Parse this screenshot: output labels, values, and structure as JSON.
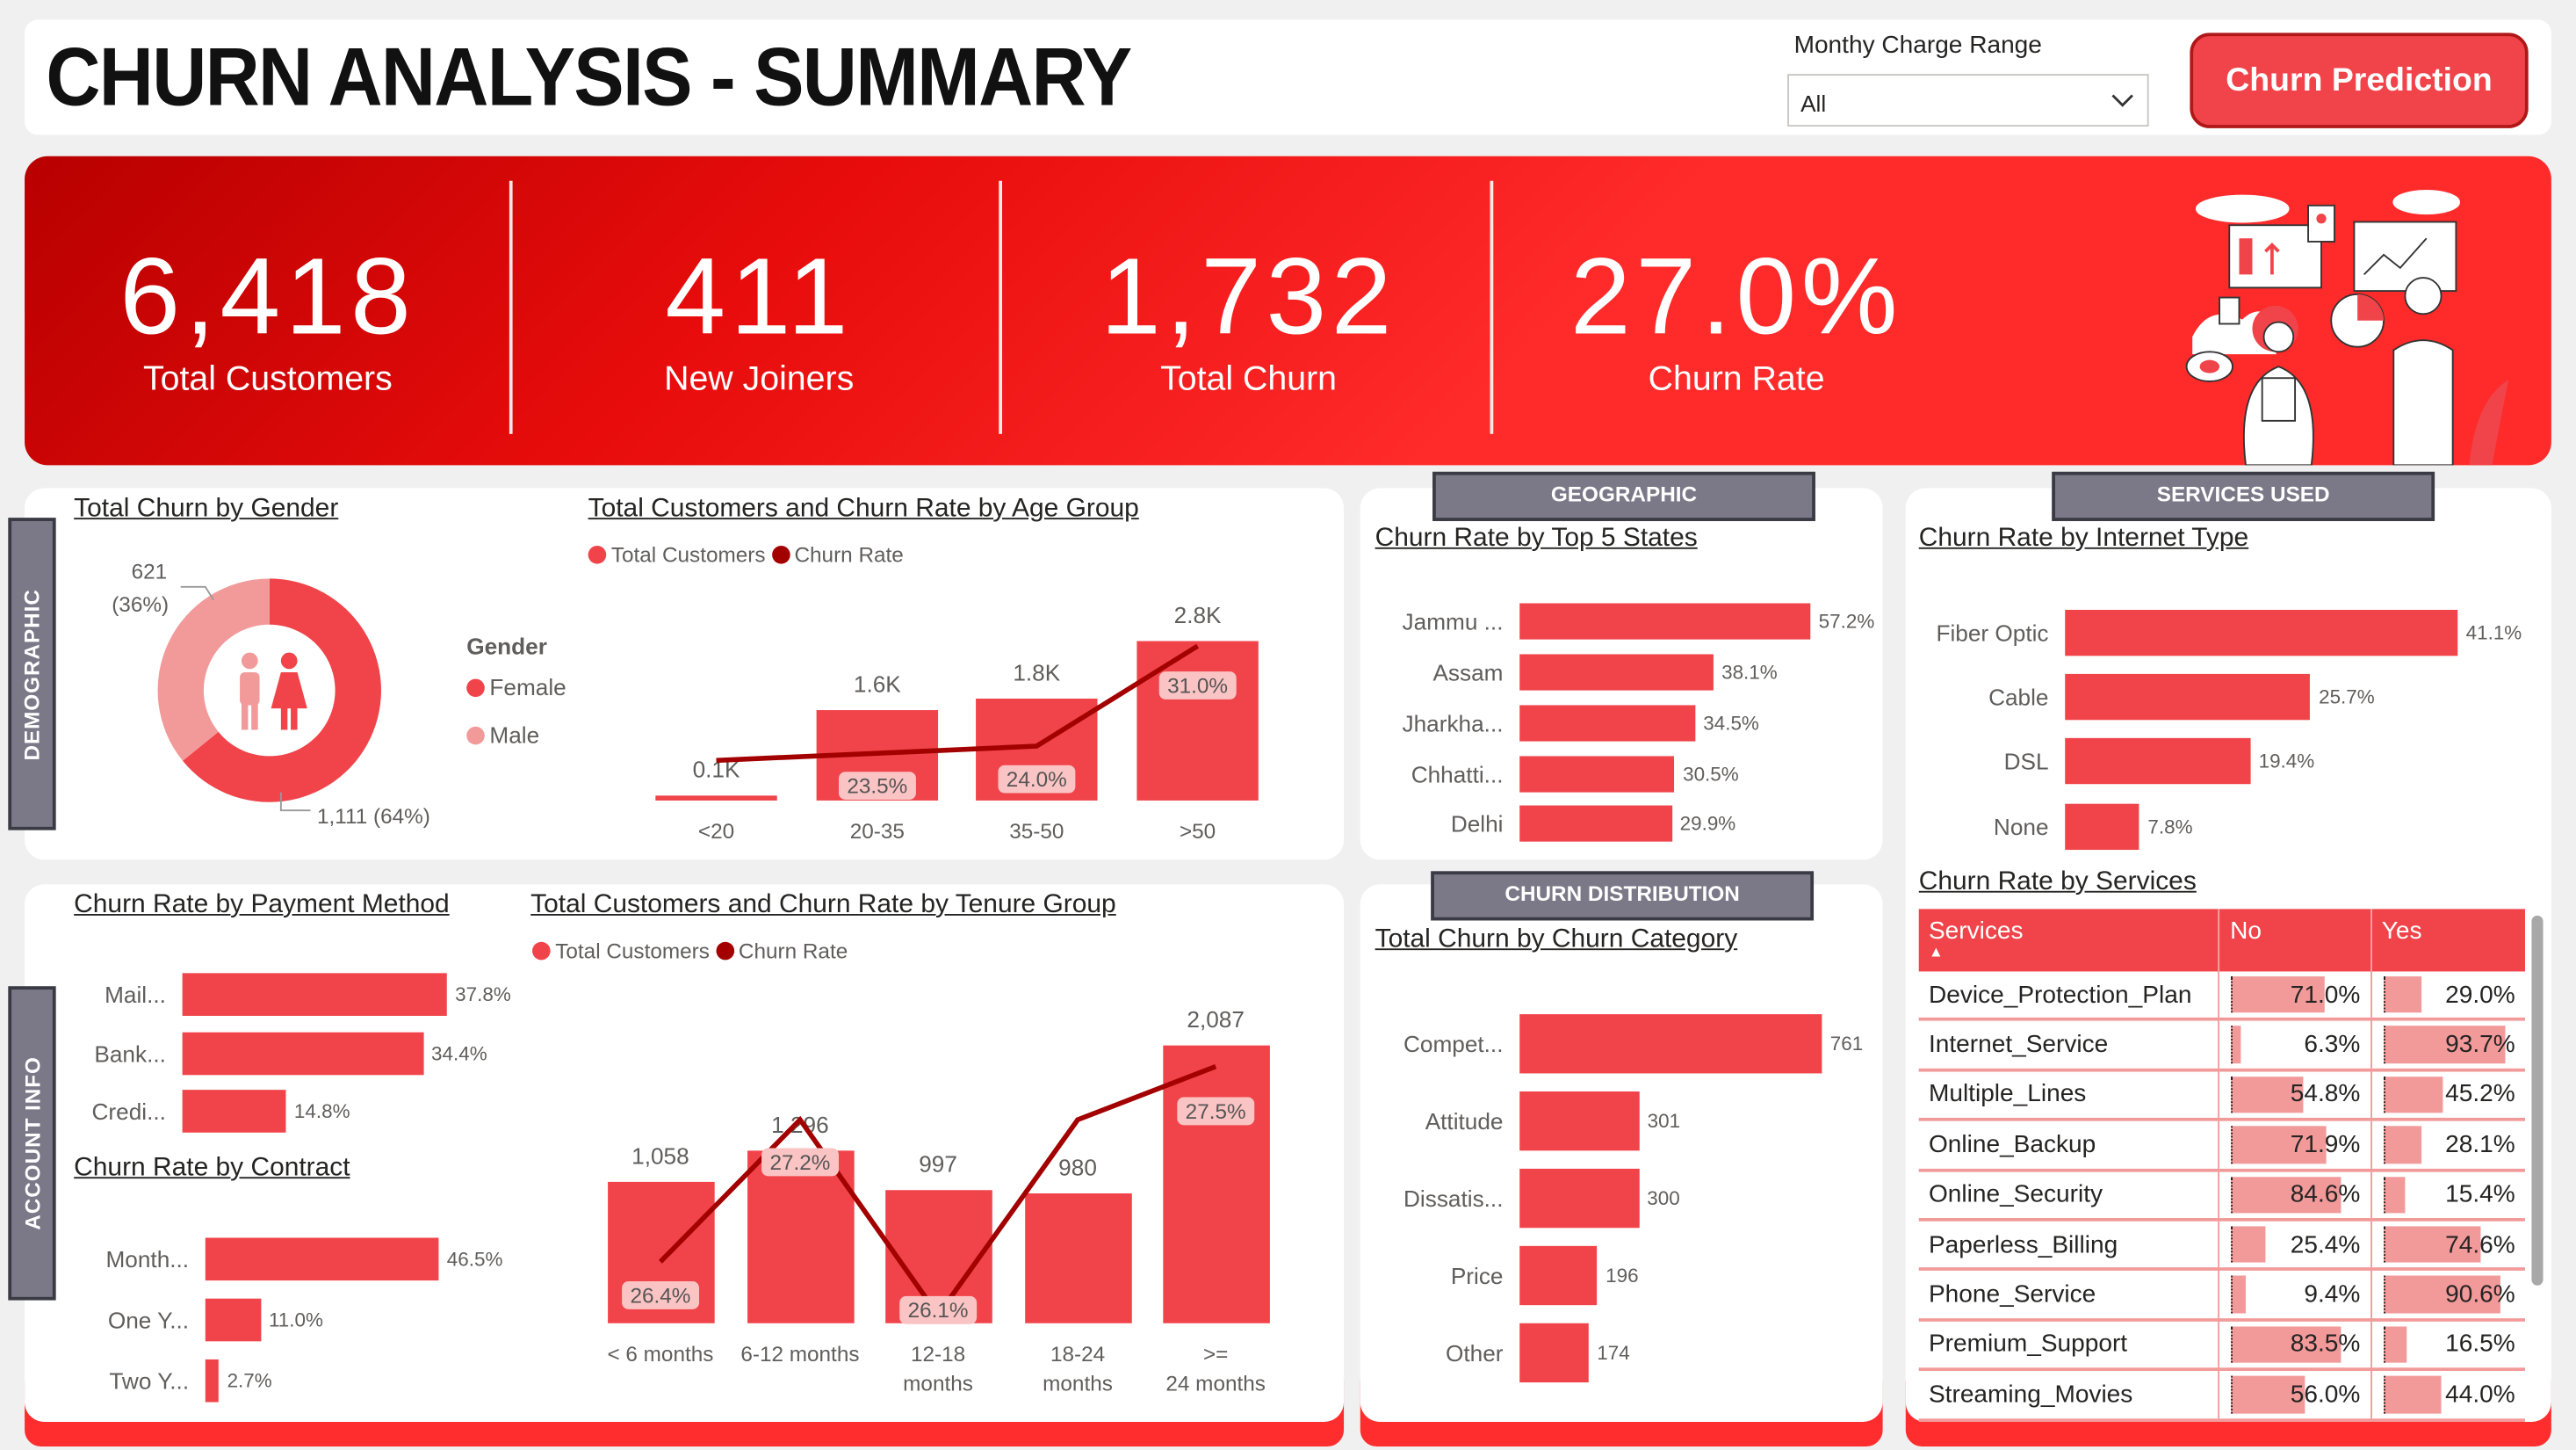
{
  "header": {
    "title": "CHURN ANALYSIS - SUMMARY",
    "filter_label": "Monthy Charge Range",
    "filter_value": "All",
    "prediction_button": "Churn Prediction"
  },
  "kpis": [
    {
      "value": "6,418",
      "label": "Total Customers"
    },
    {
      "value": "411",
      "label": "New Joiners"
    },
    {
      "value": "1,732",
      "label": "Total Churn"
    },
    {
      "value": "27.0%",
      "label": "Churn Rate"
    }
  ],
  "section_tabs": {
    "demographic": "DEMOGRAPHIC",
    "account_info": "ACCOUNT INFO",
    "geographic": "GEOGRAPHIC",
    "services_used": "SERVICES USED",
    "churn_distribution": "CHURN DISTRIBUTION"
  },
  "colors": {
    "primary_red": "#f0444a",
    "light_red": "#f29a9a",
    "dark_red": "#a30000",
    "band_red": "#ff2d2d",
    "tab_gray": "#7b7888"
  },
  "chart_data": [
    {
      "id": "gender",
      "type": "pie",
      "title": "Total Churn by Gender",
      "legend_title": "Gender",
      "legend_position": "right",
      "slices": [
        {
          "name": "Female",
          "value": 1111,
          "label": "1,111 (64%)",
          "color": "#f0444a"
        },
        {
          "name": "Male",
          "value": 621,
          "label_value": "621",
          "label_pct": "(36%)",
          "color": "#f29a9a"
        }
      ]
    },
    {
      "id": "age",
      "type": "bar",
      "title": "Total Customers and Churn Rate by Age Group",
      "legend": [
        {
          "name": "Total Customers",
          "color": "#f0444a"
        },
        {
          "name": "Churn Rate",
          "color": "#a30000"
        }
      ],
      "categories": [
        "<20",
        "20-35",
        "35-50",
        ">50"
      ],
      "series": [
        {
          "name": "Total Customers",
          "type": "bar",
          "values": [
            100,
            1600,
            1800,
            2800
          ],
          "labels": [
            "0.1K",
            "1.6K",
            "1.8K",
            "2.8K"
          ]
        },
        {
          "name": "Churn Rate",
          "type": "line",
          "values": [
            23.0,
            23.5,
            24.0,
            31.0
          ],
          "labels": [
            "",
            "23.5%",
            "24.0%",
            "31.0%"
          ]
        }
      ]
    },
    {
      "id": "states",
      "type": "bar",
      "orientation": "horizontal",
      "title": "Churn Rate by Top 5 States",
      "categories": [
        "Jammu ...",
        "Assam",
        "Jharkha...",
        "Chhatti...",
        "Delhi"
      ],
      "values": [
        57.2,
        38.1,
        34.5,
        30.5,
        29.9
      ],
      "labels": [
        "57.2%",
        "38.1%",
        "34.5%",
        "30.5%",
        "29.9%"
      ]
    },
    {
      "id": "internet",
      "type": "bar",
      "orientation": "horizontal",
      "title": "Churn Rate by Internet Type",
      "categories": [
        "Fiber Optic",
        "Cable",
        "DSL",
        "None"
      ],
      "values": [
        41.1,
        25.7,
        19.4,
        7.8
      ],
      "labels": [
        "41.1%",
        "25.7%",
        "19.4%",
        "7.8%"
      ]
    },
    {
      "id": "payment",
      "type": "bar",
      "orientation": "horizontal",
      "title": "Churn Rate by Payment Method",
      "categories": [
        "Mail...",
        "Bank...",
        "Credi..."
      ],
      "values": [
        37.8,
        34.4,
        14.8
      ],
      "labels": [
        "37.8%",
        "34.4%",
        "14.8%"
      ]
    },
    {
      "id": "contract",
      "type": "bar",
      "orientation": "horizontal",
      "title": "Churn Rate by Contract",
      "categories": [
        "Month...",
        "One Y...",
        "Two Y..."
      ],
      "values": [
        46.5,
        11.0,
        2.7
      ],
      "labels": [
        "46.5%",
        "11.0%",
        "2.7%"
      ]
    },
    {
      "id": "tenure",
      "type": "bar",
      "title": "Total Customers and Churn Rate by Tenure Group",
      "legend": [
        {
          "name": "Total Customers",
          "color": "#f0444a"
        },
        {
          "name": "Churn Rate",
          "color": "#a30000"
        }
      ],
      "categories": [
        "< 6 months",
        "6-12 months",
        "12-18 months",
        "18-24 months",
        ">= 24 months"
      ],
      "series": [
        {
          "name": "Total Customers",
          "type": "bar",
          "values": [
            1058,
            1296,
            997,
            980,
            2087
          ],
          "labels": [
            "1,058",
            "1,296",
            "997",
            "980",
            "2,087"
          ]
        },
        {
          "name": "Churn Rate",
          "type": "line",
          "values": [
            26.4,
            27.2,
            26.1,
            27.2,
            27.5
          ],
          "labels": [
            "26.4%",
            "27.2%",
            "26.1%",
            "",
            "27.5%"
          ]
        }
      ]
    },
    {
      "id": "category",
      "type": "bar",
      "orientation": "horizontal",
      "title": "Total Churn by Churn Category",
      "categories": [
        "Compet...",
        "Attitude",
        "Dissatis...",
        "Price",
        "Other"
      ],
      "values": [
        761,
        301,
        300,
        196,
        174
      ],
      "labels": [
        "761",
        "301",
        "300",
        "196",
        "174"
      ]
    },
    {
      "id": "services",
      "type": "table",
      "title": "Churn Rate by Services",
      "columns": [
        "Services",
        "No",
        "Yes"
      ],
      "rows": [
        {
          "service": "Device_Protection_Plan",
          "no": 71.0,
          "yes": 29.0,
          "no_label": "71.0%",
          "yes_label": "29.0%"
        },
        {
          "service": "Internet_Service",
          "no": 6.3,
          "yes": 93.7,
          "no_label": "6.3%",
          "yes_label": "93.7%"
        },
        {
          "service": "Multiple_Lines",
          "no": 54.8,
          "yes": 45.2,
          "no_label": "54.8%",
          "yes_label": "45.2%"
        },
        {
          "service": "Online_Backup",
          "no": 71.9,
          "yes": 28.1,
          "no_label": "71.9%",
          "yes_label": "28.1%"
        },
        {
          "service": "Online_Security",
          "no": 84.6,
          "yes": 15.4,
          "no_label": "84.6%",
          "yes_label": "15.4%"
        },
        {
          "service": "Paperless_Billing",
          "no": 25.4,
          "yes": 74.6,
          "no_label": "25.4%",
          "yes_label": "74.6%"
        },
        {
          "service": "Phone_Service",
          "no": 9.4,
          "yes": 90.6,
          "no_label": "9.4%",
          "yes_label": "90.6%"
        },
        {
          "service": "Premium_Support",
          "no": 83.5,
          "yes": 16.5,
          "no_label": "83.5%",
          "yes_label": "16.5%"
        },
        {
          "service": "Streaming_Movies",
          "no": 56.0,
          "yes": 44.0,
          "no_label": "56.0%",
          "yes_label": "44.0%"
        }
      ]
    }
  ]
}
